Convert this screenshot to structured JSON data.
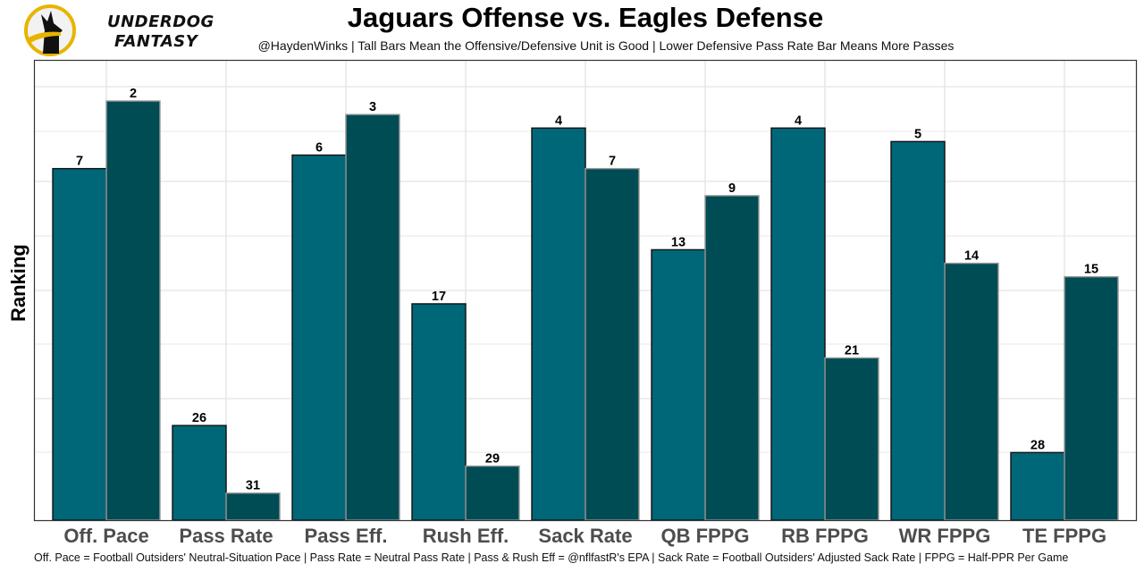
{
  "branding": {
    "logo_line1": "UNDERDOG",
    "logo_line2": "FANTASY",
    "logo_icon": "dog-silhouette-icon",
    "logo_accent": "#E8B400"
  },
  "chart_data": {
    "type": "bar",
    "title": "Jaguars Offense vs. Eagles Defense",
    "subtitle": "@HaydenWinks | Tall Bars Mean the Offensive/Defensive Unit is Good | Lower Defensive Pass Rate Bar Means More Passes",
    "xlabel": "",
    "ylabel": "Ranking",
    "caption": "Off. Pace = Football Outsiders' Neutral-Situation Pace | Pass Rate = Neutral Pass Rate | Pass & Rush Eff = @nflfastR's EPA | Sack Rate = Football Outsiders' Adjusted Sack Rate | FPPG = Half-PPR Per Game",
    "categories": [
      "Off. Pace",
      "Pass Rate",
      "Pass Eff.",
      "Rush Eff.",
      "Sack Rate",
      "QB FPPG",
      "RB FPPG",
      "WR FPPG",
      "TE FPPG"
    ],
    "series": [
      {
        "name": "Jaguars Offense",
        "color": "#006778",
        "values": [
          7,
          26,
          6,
          17,
          4,
          13,
          4,
          5,
          28
        ]
      },
      {
        "name": "Eagles Defense",
        "color": "#004C54",
        "values": [
          2,
          31,
          3,
          29,
          7,
          9,
          21,
          14,
          15
        ]
      }
    ],
    "y_axis": "rank (1 = best, tallest bar); axis inverted, no tick labels",
    "ylim": [
      32,
      1
    ],
    "grid": true,
    "legend": "none"
  }
}
